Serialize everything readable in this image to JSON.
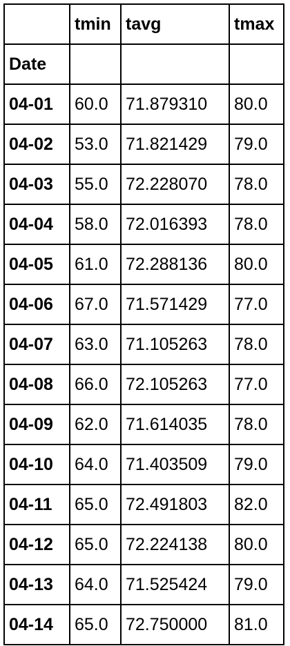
{
  "table": {
    "columns": [
      "tmin",
      "tavg",
      "tmax"
    ],
    "index_name": "Date",
    "rows": [
      {
        "date": "04-01",
        "tmin": "60.0",
        "tavg": "71.879310",
        "tmax": "80.0"
      },
      {
        "date": "04-02",
        "tmin": "53.0",
        "tavg": "71.821429",
        "tmax": "79.0"
      },
      {
        "date": "04-03",
        "tmin": "55.0",
        "tavg": "72.228070",
        "tmax": "78.0"
      },
      {
        "date": "04-04",
        "tmin": "58.0",
        "tavg": "72.016393",
        "tmax": "78.0"
      },
      {
        "date": "04-05",
        "tmin": "61.0",
        "tavg": "72.288136",
        "tmax": "80.0"
      },
      {
        "date": "04-06",
        "tmin": "67.0",
        "tavg": "71.571429",
        "tmax": "77.0"
      },
      {
        "date": "04-07",
        "tmin": "63.0",
        "tavg": "71.105263",
        "tmax": "78.0"
      },
      {
        "date": "04-08",
        "tmin": "66.0",
        "tavg": "72.105263",
        "tmax": "77.0"
      },
      {
        "date": "04-09",
        "tmin": "62.0",
        "tavg": "71.614035",
        "tmax": "78.0"
      },
      {
        "date": "04-10",
        "tmin": "64.0",
        "tavg": "71.403509",
        "tmax": "79.0"
      },
      {
        "date": "04-11",
        "tmin": "65.0",
        "tavg": "72.491803",
        "tmax": "82.0"
      },
      {
        "date": "04-12",
        "tmin": "65.0",
        "tavg": "72.224138",
        "tmax": "80.0"
      },
      {
        "date": "04-13",
        "tmin": "64.0",
        "tavg": "71.525424",
        "tmax": "79.0"
      },
      {
        "date": "04-14",
        "tmin": "65.0",
        "tavg": "72.750000",
        "tmax": "81.0"
      }
    ]
  }
}
